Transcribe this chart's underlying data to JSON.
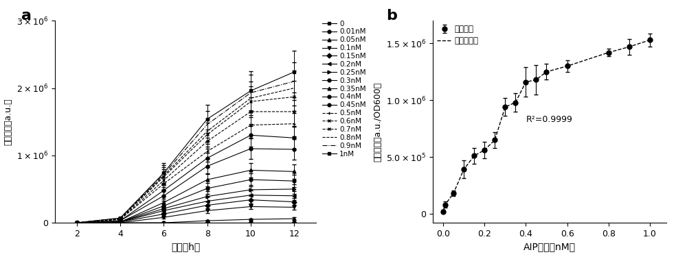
{
  "panel_a": {
    "xlabel": "时间（h）",
    "ylabel": "荧光强度（a.u.）",
    "time_points": [
      2,
      4,
      6,
      8,
      10,
      12
    ],
    "concentrations": [
      "0",
      "0.01nM",
      "0.05nM",
      "0.1nM",
      "0.15nM",
      "0.2nM",
      "0.25nM",
      "0.3nM",
      "0.35nM",
      "0.4nM",
      "0.45nM",
      "0.5nM",
      "0.6nM",
      "0.7nM",
      "0.8nM",
      "0.9nM",
      "1nM"
    ],
    "data": [
      [
        0,
        0,
        0,
        0,
        0,
        0
      ],
      [
        0,
        0,
        0,
        0,
        0,
        0
      ],
      [
        0,
        0,
        0,
        30000,
        50000,
        60000
      ],
      [
        0,
        0,
        80000,
        180000,
        240000,
        230000
      ],
      [
        0,
        10000,
        130000,
        260000,
        340000,
        310000
      ],
      [
        0,
        10000,
        180000,
        320000,
        410000,
        400000
      ],
      [
        0,
        10000,
        210000,
        390000,
        490000,
        500000
      ],
      [
        0,
        10000,
        250000,
        510000,
        640000,
        620000
      ],
      [
        0,
        10000,
        300000,
        640000,
        780000,
        760000
      ],
      [
        0,
        30000,
        400000,
        840000,
        1100000,
        1090000
      ],
      [
        0,
        30000,
        480000,
        960000,
        1300000,
        1260000
      ],
      [
        0,
        50000,
        580000,
        1060000,
        1450000,
        1470000
      ],
      [
        0,
        50000,
        630000,
        1210000,
        1650000,
        1650000
      ],
      [
        0,
        60000,
        680000,
        1310000,
        1800000,
        1870000
      ],
      [
        0,
        60000,
        700000,
        1360000,
        1850000,
        2000000
      ],
      [
        0,
        70000,
        720000,
        1460000,
        1930000,
        2100000
      ],
      [
        0,
        70000,
        740000,
        1540000,
        1960000,
        2240000
      ]
    ],
    "errors": [
      [
        0,
        0,
        0,
        0,
        0,
        0
      ],
      [
        0,
        0,
        0,
        0,
        0,
        10000
      ],
      [
        0,
        0,
        0,
        10000,
        10000,
        20000
      ],
      [
        0,
        0,
        15000,
        35000,
        35000,
        40000
      ],
      [
        0,
        5000,
        25000,
        55000,
        55000,
        55000
      ],
      [
        0,
        5000,
        35000,
        65000,
        65000,
        65000
      ],
      [
        0,
        5000,
        35000,
        75000,
        75000,
        75000
      ],
      [
        0,
        5000,
        45000,
        85000,
        95000,
        95000
      ],
      [
        0,
        5000,
        55000,
        95000,
        110000,
        110000
      ],
      [
        0,
        10000,
        75000,
        120000,
        150000,
        150000
      ],
      [
        0,
        10000,
        85000,
        140000,
        170000,
        170000
      ],
      [
        0,
        10000,
        95000,
        150000,
        190000,
        190000
      ],
      [
        0,
        10000,
        105000,
        170000,
        210000,
        210000
      ],
      [
        0,
        10000,
        115000,
        180000,
        230000,
        240000
      ],
      [
        0,
        10000,
        125000,
        190000,
        250000,
        260000
      ],
      [
        0,
        10000,
        135000,
        200000,
        270000,
        280000
      ],
      [
        0,
        10000,
        145000,
        210000,
        290000,
        310000
      ]
    ],
    "ylim": [
      0,
      3000000
    ],
    "yticks": [
      0,
      1000000,
      2000000,
      3000000
    ],
    "xlim": [
      1,
      13
    ],
    "xticks": [
      2,
      4,
      6,
      8,
      10,
      12
    ]
  },
  "panel_b": {
    "xlabel": "AIP浓度（nM）",
    "ylabel": "荧光强度（a.u./OD600）",
    "legend_data": "荧光强度",
    "legend_fit": "非线性拟合",
    "annotation": "R²=0.9999",
    "aip_conc": [
      0.0,
      0.01,
      0.05,
      0.1,
      0.15,
      0.2,
      0.25,
      0.3,
      0.35,
      0.4,
      0.45,
      0.5,
      0.6,
      0.8,
      0.9,
      1.0
    ],
    "fluorescence": [
      20000,
      80000,
      180000,
      390000,
      510000,
      560000,
      650000,
      940000,
      980000,
      1160000,
      1180000,
      1250000,
      1300000,
      1420000,
      1470000,
      1530000
    ],
    "errors_b": [
      15000,
      25000,
      25000,
      80000,
      70000,
      70000,
      70000,
      80000,
      80000,
      130000,
      130000,
      70000,
      50000,
      35000,
      70000,
      55000
    ],
    "xlim_b": [
      -0.05,
      1.08
    ],
    "ylim_b": [
      -80000,
      1700000
    ],
    "xticks_b": [
      0.0,
      0.2,
      0.4,
      0.6,
      0.8,
      1.0
    ],
    "yticks_b": [
      0,
      500000,
      1000000,
      1500000
    ]
  },
  "background_color": "#ffffff"
}
